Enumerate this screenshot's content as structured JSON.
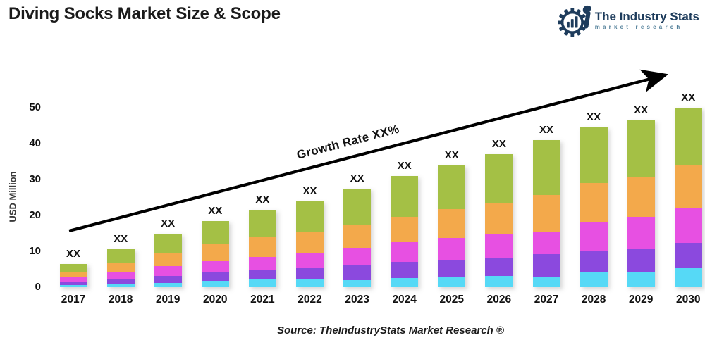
{
  "header": {
    "title": "Diving Socks Market Size & Scope",
    "logo": {
      "brand": "The Industry Stats",
      "tagline": "market research",
      "brand_color": "#1e3c5c",
      "tagline_color": "#53809a"
    }
  },
  "chart_data": {
    "type": "bar",
    "stacked": true,
    "title": "",
    "xlabel": "",
    "ylabel": "USD Million",
    "ylim": [
      0,
      50
    ],
    "yticks": [
      0,
      10,
      20,
      30,
      40,
      50
    ],
    "grid": false,
    "legend_position": "none",
    "bar_value_label": "XX",
    "categories": [
      "2017",
      "2018",
      "2019",
      "2020",
      "2021",
      "2022",
      "2023",
      "2024",
      "2025",
      "2026",
      "2027",
      "2028",
      "2029",
      "2030"
    ],
    "series": [
      {
        "name": "segment-cyan",
        "color": "#56d9f6",
        "values": [
          0.6,
          0.9,
          1.2,
          1.7,
          2.1,
          2.1,
          2.0,
          2.6,
          2.9,
          3.1,
          2.9,
          4.1,
          4.4,
          5.5
        ]
      },
      {
        "name": "segment-purple",
        "color": "#8b49de",
        "values": [
          0.8,
          1.3,
          1.9,
          2.6,
          2.9,
          3.3,
          4.1,
          4.4,
          4.7,
          5.0,
          6.4,
          6.0,
          6.3,
          6.9
        ]
      },
      {
        "name": "segment-magenta",
        "color": "#e750e2",
        "values": [
          1.3,
          2.0,
          2.7,
          3.0,
          3.5,
          4.1,
          4.9,
          5.5,
          6.2,
          6.7,
          6.2,
          8.2,
          8.9,
          9.8
        ]
      },
      {
        "name": "segment-orange",
        "color": "#f3a94b",
        "values": [
          1.6,
          2.5,
          3.6,
          4.6,
          5.4,
          5.8,
          6.3,
          7.1,
          7.9,
          8.5,
          10.2,
          10.7,
          11.2,
          11.8
        ]
      },
      {
        "name": "segment-green",
        "color": "#a4c045",
        "values": [
          2.2,
          3.8,
          5.6,
          6.6,
          7.6,
          8.7,
          10.2,
          11.4,
          12.3,
          13.7,
          15.3,
          15.5,
          15.7,
          16.0
        ]
      }
    ],
    "totals": [
      6.5,
      10.5,
      15.0,
      18.5,
      21.5,
      24.0,
      27.5,
      31.0,
      34.0,
      37.0,
      41.0,
      44.5,
      46.5,
      50.0
    ],
    "annotation": {
      "type": "trend-arrow",
      "text": "Growth Rate XX%"
    }
  },
  "footer": {
    "source": "Source: TheIndustryStats Market Research ®"
  }
}
